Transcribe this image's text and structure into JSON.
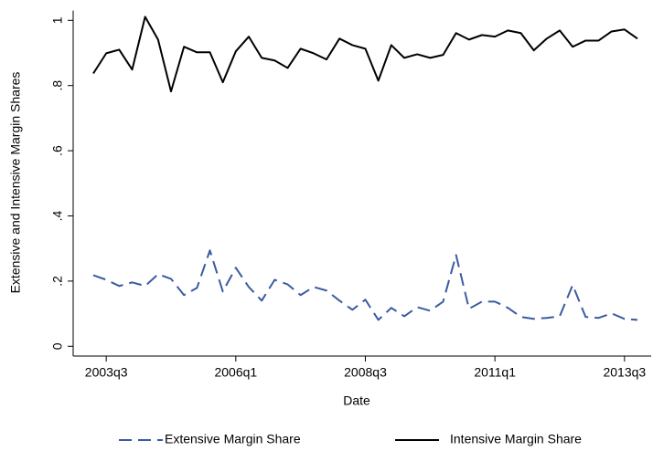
{
  "chart_data": {
    "type": "line",
    "xlabel": "Date",
    "ylabel": "Extensive and Intensive Margin Shares",
    "categories": [
      null,
      "2003q3",
      null,
      null,
      null,
      null,
      null,
      null,
      null,
      null,
      null,
      "2006q1",
      null,
      null,
      null,
      null,
      null,
      null,
      null,
      null,
      null,
      "2008q3",
      null,
      null,
      null,
      null,
      null,
      null,
      null,
      null,
      null,
      "2011q1",
      null,
      null,
      null,
      null,
      null,
      null,
      null,
      null,
      null,
      "2013q3",
      null
    ],
    "series": [
      {
        "name": "Extensive Margin Share",
        "color": "#3a5ba0",
        "dashed": true,
        "values": [
          0.218,
          0.204,
          0.185,
          0.196,
          0.185,
          0.221,
          0.207,
          0.157,
          0.179,
          0.294,
          0.168,
          0.241,
          0.182,
          0.14,
          0.204,
          0.19,
          0.157,
          0.182,
          0.171,
          0.14,
          0.112,
          0.143,
          0.081,
          0.118,
          0.092,
          0.12,
          0.109,
          0.137,
          0.28,
          0.115,
          0.137,
          0.137,
          0.118,
          0.09,
          0.084,
          0.087,
          0.092,
          0.188,
          0.09,
          0.087,
          0.101,
          0.084,
          0.081
        ]
      },
      {
        "name": "Intensive Margin Share",
        "color": "#000000",
        "dashed": false,
        "values": [
          0.837,
          0.899,
          0.91,
          0.849,
          1.011,
          0.941,
          0.782,
          0.919,
          0.902,
          0.902,
          0.81,
          0.905,
          0.95,
          0.885,
          0.877,
          0.854,
          0.913,
          0.899,
          0.88,
          0.944,
          0.924,
          0.913,
          0.815,
          0.924,
          0.885,
          0.896,
          0.885,
          0.894,
          0.961,
          0.941,
          0.955,
          0.95,
          0.969,
          0.961,
          0.908,
          0.944,
          0.969,
          0.919,
          0.938,
          0.938,
          0.966,
          0.972,
          0.944
        ]
      }
    ],
    "ylim": [
      -0.03,
      1.03
    ],
    "yticks": [
      0,
      {
        "value": 0.2,
        "label": ".2"
      },
      {
        "value": 0.4,
        "label": ".4"
      },
      {
        "value": 0.6,
        "label": ".6"
      },
      {
        "value": 0.8,
        "label": ".8"
      },
      1
    ],
    "grid": false,
    "legend": "bottom"
  }
}
